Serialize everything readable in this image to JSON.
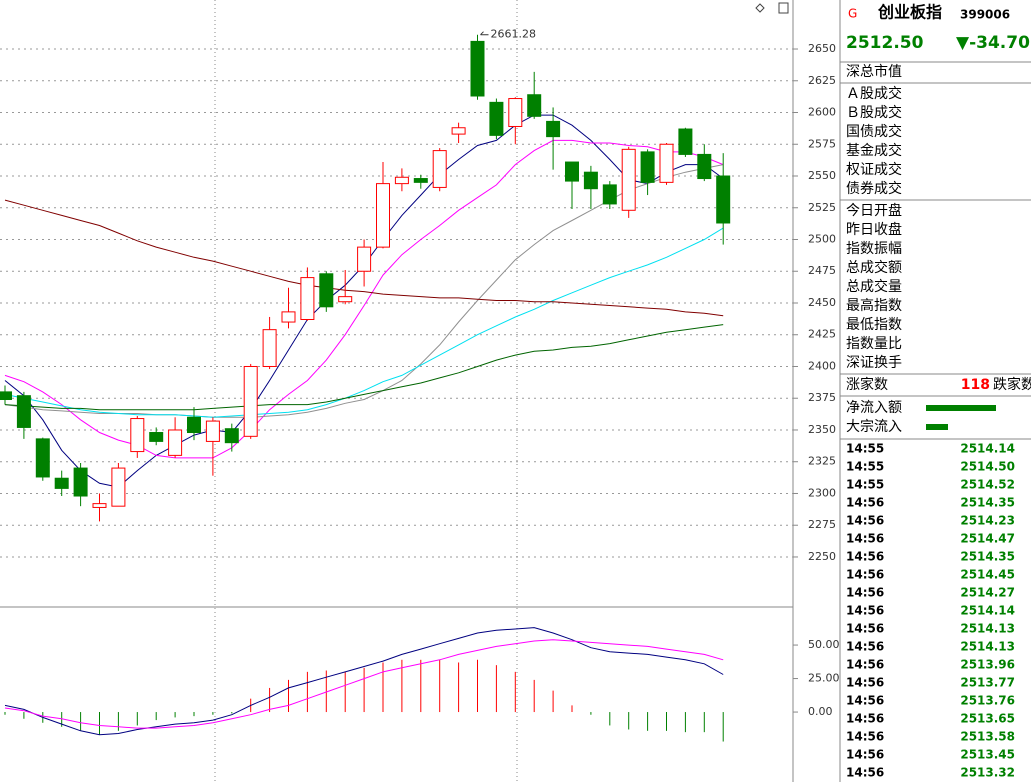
{
  "chart_data": [
    {
      "type": "candlestick",
      "annotation": "2661.28",
      "ylim": [
        2210.6,
        2688.6
      ],
      "yticks": [
        2250,
        2275,
        2300,
        2325,
        2350,
        2375,
        2400,
        2425,
        2450,
        2475,
        2500,
        2525,
        2550,
        2575,
        2600,
        2625,
        2650
      ],
      "grid": true,
      "up_color": "#ff0000",
      "down_color": "#008000",
      "open": [
        2380,
        2377,
        2343,
        2312,
        2320,
        2289,
        2290,
        2333,
        2348,
        2330,
        2360,
        2341,
        2351,
        2345,
        2400,
        2435,
        2437,
        2473,
        2451,
        2475,
        2494,
        2544,
        2548,
        2541,
        2583,
        2656,
        2608,
        2589,
        2614,
        2593,
        2561,
        2553,
        2543,
        2523,
        2569,
        2545,
        2587,
        2567,
        2550
      ],
      "close": [
        2374,
        2352,
        2313,
        2304,
        2298,
        2292,
        2320,
        2359,
        2341,
        2350,
        2348,
        2357,
        2340,
        2400,
        2429,
        2443,
        2470,
        2447,
        2455,
        2494,
        2544,
        2549,
        2545,
        2570,
        2588,
        2613,
        2582,
        2611,
        2597,
        2581,
        2546,
        2540,
        2528,
        2571,
        2545,
        2575,
        2567,
        2548,
        2513
      ],
      "high": [
        2385,
        2380,
        2344,
        2318,
        2324,
        2300,
        2324,
        2361,
        2352,
        2360,
        2368,
        2360,
        2355,
        2402,
        2439,
        2462,
        2478,
        2475,
        2476,
        2500,
        2561,
        2556,
        2551,
        2572,
        2592,
        2661.28,
        2611,
        2612,
        2632,
        2604,
        2561,
        2558,
        2546,
        2573,
        2571,
        2576,
        2588,
        2575,
        2568
      ],
      "low": [
        2370,
        2343,
        2310,
        2298,
        2290,
        2278,
        2290,
        2328,
        2338,
        2328,
        2342,
        2314,
        2333,
        2343,
        2398,
        2430,
        2436,
        2443,
        2449,
        2463,
        2493,
        2538,
        2540,
        2538,
        2576,
        2610,
        2579,
        2575,
        2595,
        2555,
        2524,
        2524,
        2524,
        2517,
        2535,
        2543,
        2565,
        2546,
        2496
      ],
      "series": [
        {
          "color": "#000080",
          "values": [
            2389,
            2377,
            2358,
            2334,
            2318,
            2308,
            2305,
            2318,
            2330,
            2338,
            2346,
            2350,
            2348,
            2366,
            2389,
            2413,
            2437,
            2452,
            2464,
            2480,
            2500,
            2519,
            2535,
            2551,
            2563,
            2574,
            2578,
            2590,
            2598,
            2598,
            2590,
            2578,
            2563,
            2547,
            2544,
            2553,
            2559,
            2559,
            2548
          ]
        },
        {
          "color": "#ff00ff",
          "values": [
            2393,
            2388,
            2380,
            2370,
            2358,
            2348,
            2342,
            2338,
            2330,
            2328,
            2328,
            2328,
            2336,
            2350,
            2366,
            2378,
            2389,
            2405,
            2425,
            2448,
            2472,
            2488,
            2500,
            2511,
            2523,
            2533,
            2543,
            2559,
            2570,
            2578,
            2578,
            2576,
            2576,
            2574,
            2573,
            2569,
            2569,
            2565,
            2559
          ]
        },
        {
          "color": "#909090",
          "values": [
            2370,
            2368,
            2366,
            2365,
            2364,
            2363,
            2363,
            2363,
            2362,
            2362,
            2361,
            2360,
            2360,
            2360,
            2361,
            2362,
            2364,
            2367,
            2371,
            2374,
            2381,
            2389,
            2402,
            2417,
            2435,
            2452,
            2468,
            2484,
            2496,
            2507,
            2515,
            2523,
            2531,
            2539,
            2544,
            2549,
            2553,
            2556,
            2559
          ]
        },
        {
          "color": "#00e0f0",
          "values": [
            2378,
            2375,
            2372,
            2369,
            2366,
            2364,
            2363,
            2362,
            2362,
            2362,
            2361,
            2360,
            2361,
            2362,
            2363,
            2364,
            2366,
            2370,
            2375,
            2381,
            2388,
            2393,
            2401,
            2409,
            2417,
            2425,
            2432,
            2439,
            2445,
            2452,
            2458,
            2464,
            2470,
            2475,
            2480,
            2486,
            2493,
            2500,
            2509
          ]
        },
        {
          "color": "#006400",
          "values": [
            2370,
            2369,
            2368,
            2367,
            2367,
            2366,
            2366,
            2366,
            2366,
            2366,
            2366,
            2367,
            2368,
            2369,
            2370,
            2370,
            2370,
            2372,
            2375,
            2378,
            2381,
            2384,
            2387,
            2391,
            2395,
            2400,
            2405,
            2409,
            2412,
            2413,
            2415,
            2416,
            2418,
            2421,
            2424,
            2427,
            2429,
            2431,
            2433
          ]
        },
        {
          "color": "#800000",
          "values": [
            2531,
            2527,
            2523,
            2519,
            2515,
            2511,
            2505,
            2499,
            2494,
            2490,
            2486,
            2483,
            2479,
            2475,
            2471,
            2467,
            2464,
            2462,
            2460,
            2459,
            2457,
            2456,
            2455,
            2454,
            2454,
            2453,
            2452,
            2452,
            2451,
            2451,
            2450,
            2449,
            2448,
            2447,
            2446,
            2445,
            2443,
            2442,
            2440
          ]
        }
      ]
    },
    {
      "type": "macd",
      "ylim": [
        -52.2,
        78.4
      ],
      "yticks": [
        {
          "value": 0,
          "label": "0.00"
        },
        {
          "value": 25,
          "label": "25.00"
        },
        {
          "value": 50,
          "label": "50.00"
        }
      ],
      "up_color": "#ff0000",
      "down_color": "#008000",
      "hist": [
        -2,
        -5,
        -8,
        -11,
        -14,
        -17,
        -14,
        -10,
        -6,
        -4,
        -3,
        -2,
        -1,
        10,
        18,
        24,
        30,
        31,
        30,
        33,
        37,
        39,
        39,
        39,
        37,
        39,
        35,
        30,
        24,
        16,
        5,
        -2,
        -10,
        -13,
        -14,
        -14,
        -15,
        -15,
        -22
      ],
      "series": [
        {
          "color": "#000080",
          "values": [
            5,
            2,
            -4,
            -9,
            -14,
            -17,
            -16,
            -13,
            -11,
            -9,
            -8,
            -6,
            -2,
            5,
            11,
            18,
            22,
            26,
            30,
            34,
            38,
            43,
            47,
            51,
            55,
            59,
            61,
            62,
            63,
            59,
            54,
            48,
            45,
            44,
            43,
            41,
            39,
            36,
            28
          ]
        },
        {
          "color": "#ff00ff",
          "values": [
            3,
            1,
            -3,
            -5,
            -8,
            -10,
            -11,
            -12,
            -12,
            -11,
            -10,
            -8,
            -5,
            -2,
            2,
            5,
            10,
            15,
            20,
            25,
            30,
            33,
            36,
            39,
            43,
            46,
            49,
            51,
            53,
            54,
            53,
            52,
            51,
            50,
            49,
            47,
            45,
            43,
            39
          ]
        }
      ]
    }
  ],
  "quote": {
    "marker": "G",
    "name": "创业板指",
    "code": "399006",
    "price": "2512.50",
    "change": "▼-34.70",
    "market_value_label": "深总市值",
    "volume_labels": [
      "Ａ股成交",
      "Ｂ股成交",
      "国债成交",
      "基金成交",
      "权证成交",
      "债券成交"
    ],
    "stat_labels": [
      "今日开盘",
      "昨日收盘",
      "指数振幅",
      "总成交额",
      "总成交量",
      "最高指数",
      "最低指数",
      "指数量比",
      "深证换手"
    ],
    "advance_label": "涨家数",
    "advance_count": 118,
    "decline_label": "跌家数",
    "flow_labels": [
      "净流入额",
      "大宗流入"
    ],
    "tick_times": [
      "14:55",
      "14:55",
      "14:55",
      "14:56",
      "14:56",
      "14:56",
      "14:56",
      "14:56",
      "14:56",
      "14:56",
      "14:56",
      "14:56",
      "14:56",
      "14:56",
      "14:56",
      "14:56",
      "14:56",
      "14:56",
      "14:56"
    ],
    "tick_prices": [
      "2514.14",
      "2514.50",
      "2514.52",
      "2514.35",
      "2514.23",
      "2514.47",
      "2514.35",
      "2514.45",
      "2514.27",
      "2514.14",
      "2514.13",
      "2514.13",
      "2513.96",
      "2513.77",
      "2513.76",
      "2513.65",
      "2513.58",
      "2513.45",
      "2513.32"
    ]
  }
}
